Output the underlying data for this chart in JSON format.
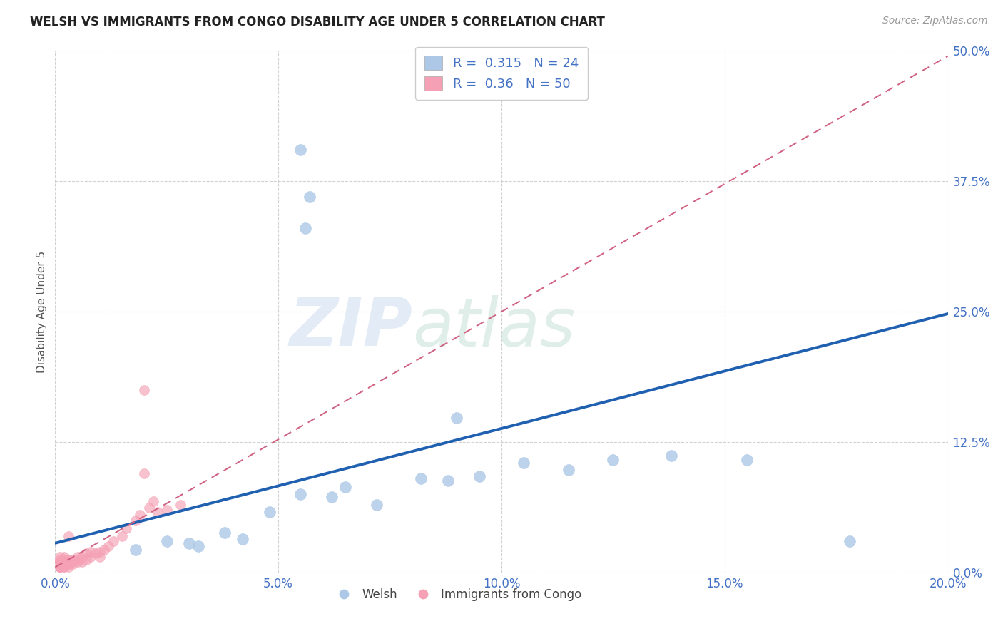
{
  "title": "WELSH VS IMMIGRANTS FROM CONGO DISABILITY AGE UNDER 5 CORRELATION CHART",
  "source": "Source: ZipAtlas.com",
  "ylabel_label": "Disability Age Under 5",
  "welsh_R": 0.315,
  "welsh_N": 24,
  "congo_R": 0.36,
  "congo_N": 50,
  "welsh_color": "#adc8e6",
  "congo_color": "#f5a0b4",
  "welsh_line_color": "#2060b0",
  "congo_line_color": "#d06080",
  "watermark_zip": "ZIP",
  "watermark_atlas": "atlas",
  "xlim": [
    0.0,
    0.2
  ],
  "ylim": [
    0.0,
    0.5
  ],
  "xtick_vals": [
    0.0,
    0.05,
    0.1,
    0.15,
    0.2
  ],
  "xtick_labels": [
    "0.0%",
    "5.0%",
    "10.0%",
    "15.0%",
    "20.0%"
  ],
  "ytick_vals": [
    0.0,
    0.125,
    0.25,
    0.375,
    0.5
  ],
  "ytick_labels": [
    "0.0%",
    "12.5%",
    "25.0%",
    "37.5%",
    "50.0%"
  ],
  "background_color": "#ffffff",
  "grid_color": "#cccccc",
  "tick_color": "#4472c4",
  "welsh_x": [
    0.055,
    0.057,
    0.056,
    0.018,
    0.025,
    0.03,
    0.038,
    0.042,
    0.032,
    0.048,
    0.055,
    0.065,
    0.072,
    0.082,
    0.088,
    0.095,
    0.105,
    0.115,
    0.125,
    0.138,
    0.155,
    0.178,
    0.09,
    0.062
  ],
  "welsh_y": [
    0.405,
    0.36,
    0.33,
    0.022,
    0.03,
    0.028,
    0.038,
    0.032,
    0.025,
    0.058,
    0.075,
    0.082,
    0.065,
    0.09,
    0.088,
    0.092,
    0.105,
    0.098,
    0.108,
    0.112,
    0.108,
    0.03,
    0.148,
    0.072
  ],
  "congo_x": [
    0.001,
    0.001,
    0.001,
    0.001,
    0.001,
    0.001,
    0.001,
    0.001,
    0.001,
    0.001,
    0.002,
    0.002,
    0.002,
    0.002,
    0.002,
    0.002,
    0.003,
    0.003,
    0.003,
    0.003,
    0.004,
    0.004,
    0.004,
    0.005,
    0.005,
    0.005,
    0.006,
    0.006,
    0.007,
    0.007,
    0.008,
    0.008,
    0.009,
    0.01,
    0.01,
    0.011,
    0.012,
    0.013,
    0.015,
    0.016,
    0.018,
    0.019,
    0.02,
    0.021,
    0.022,
    0.023,
    0.025,
    0.028,
    0.02,
    0.003
  ],
  "congo_y": [
    0.005,
    0.005,
    0.005,
    0.005,
    0.005,
    0.01,
    0.01,
    0.01,
    0.012,
    0.015,
    0.005,
    0.005,
    0.008,
    0.01,
    0.012,
    0.015,
    0.005,
    0.008,
    0.01,
    0.012,
    0.008,
    0.01,
    0.012,
    0.01,
    0.012,
    0.015,
    0.01,
    0.015,
    0.012,
    0.018,
    0.015,
    0.02,
    0.018,
    0.015,
    0.02,
    0.022,
    0.025,
    0.03,
    0.035,
    0.042,
    0.05,
    0.055,
    0.095,
    0.062,
    0.068,
    0.058,
    0.06,
    0.065,
    0.175,
    0.035
  ],
  "welsh_line_x0": 0.0,
  "welsh_line_y0": 0.028,
  "welsh_line_x1": 0.2,
  "welsh_line_y1": 0.248,
  "congo_line_x0": 0.0,
  "congo_line_y0": 0.005,
  "congo_line_x1": 0.2,
  "congo_line_y1": 0.495
}
